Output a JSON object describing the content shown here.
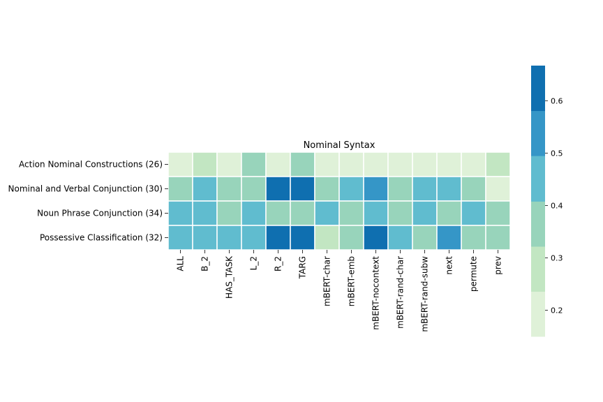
{
  "chart_data": {
    "type": "heatmap",
    "title": "Nominal Syntax",
    "xlabel": "",
    "ylabel": "",
    "rows": [
      "Action Nominal Constructions (26)",
      "Nominal and Verbal Conjunction (30)",
      "Noun Phrase Conjunction (34)",
      "Possessive Classification (32)"
    ],
    "columns": [
      "ALL",
      "B_2",
      "HAS_TASK",
      "L_2",
      "R_2",
      "TARG",
      "mBERT-char",
      "mBERT-emb",
      "mBERT-nocontext",
      "mBERT-rand-char",
      "mBERT-rand-subw",
      "next",
      "permute",
      "prev"
    ],
    "values": [
      [
        0.22,
        0.3,
        0.22,
        0.37,
        0.22,
        0.37,
        0.22,
        0.22,
        0.22,
        0.22,
        0.22,
        0.22,
        0.22,
        0.3
      ],
      [
        0.37,
        0.45,
        0.37,
        0.37,
        0.62,
        0.62,
        0.37,
        0.45,
        0.53,
        0.37,
        0.45,
        0.45,
        0.37,
        0.2
      ],
      [
        0.45,
        0.45,
        0.37,
        0.45,
        0.37,
        0.37,
        0.45,
        0.37,
        0.45,
        0.37,
        0.45,
        0.37,
        0.45,
        0.37
      ],
      [
        0.45,
        0.45,
        0.45,
        0.45,
        0.62,
        0.62,
        0.3,
        0.37,
        0.62,
        0.45,
        0.37,
        0.53,
        0.37,
        0.37
      ]
    ],
    "colorbar": {
      "range": [
        0.15,
        0.667
      ],
      "ticks": [
        0.2,
        0.3,
        0.4,
        0.5,
        0.6
      ],
      "tick_labels": [
        "0.2",
        "0.3",
        "0.4",
        "0.5",
        "0.6"
      ],
      "bin_edges": [
        0.15,
        0.236,
        0.322,
        0.408,
        0.495,
        0.581,
        0.667
      ],
      "colors": [
        "#dff1d8",
        "#c2e6c2",
        "#98d4bb",
        "#60bccf",
        "#3596c7",
        "#0f6fb0"
      ]
    },
    "grid": false,
    "legend": "colorbar-right"
  }
}
